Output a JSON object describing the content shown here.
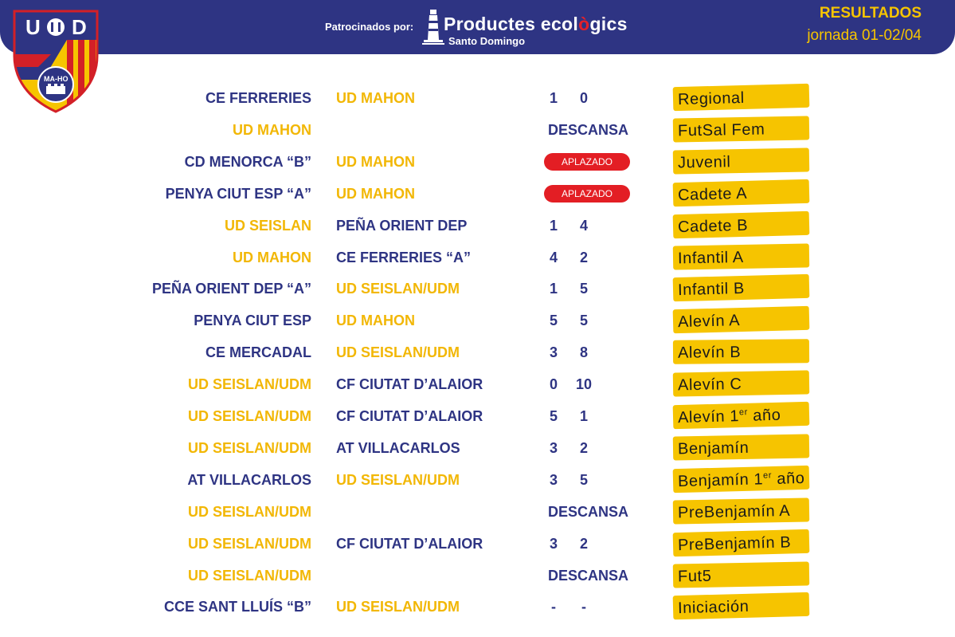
{
  "header": {
    "sponsor_label": "Patrocinados por:",
    "sponsor_name_a": "Productes ecol",
    "sponsor_name_b": "ò",
    "sponsor_name_c": "gics",
    "sponsor_sub": "Santo Domingo",
    "title": "RESULTADOS",
    "subtitle": "jornada 01-02/04"
  },
  "crest": {
    "letters_left": "U",
    "letters_right": "D",
    "banner": "MA-HO"
  },
  "colors": {
    "navy": "#2e3483",
    "gold": "#f2b705",
    "category": "#f6c400",
    "postponed": "#e31e24"
  },
  "rows": [
    {
      "home": "CE FERRERIES",
      "away": "UD MAHON",
      "s1": "1",
      "s2": "0",
      "status": "",
      "cat": "Regional",
      "sup": "",
      "cat2": ""
    },
    {
      "home": "UD MAHON",
      "away": "",
      "s1": "",
      "s2": "",
      "status": "DESCANSA",
      "cat": "FutSal Fem",
      "sup": "",
      "cat2": ""
    },
    {
      "home": "CD MENORCA “B”",
      "away": "UD MAHON",
      "s1": "",
      "s2": "",
      "status": "APLAZADO",
      "cat": "Juvenil",
      "sup": "",
      "cat2": ""
    },
    {
      "home": "PENYA CIUT ESP “A”",
      "away": "UD MAHON",
      "s1": "",
      "s2": "",
      "status": "APLAZADO",
      "cat": "Cadete A",
      "sup": "",
      "cat2": ""
    },
    {
      "home": "UD SEISLAN",
      "away": "PEÑA ORIENT DEP",
      "s1": "1",
      "s2": "4",
      "status": "",
      "cat": "Cadete B",
      "sup": "",
      "cat2": ""
    },
    {
      "home": "UD MAHON",
      "away": "CE FERRERIES “A”",
      "s1": "4",
      "s2": "2",
      "status": "",
      "cat": "Infantil A",
      "sup": "",
      "cat2": ""
    },
    {
      "home": "PEÑA ORIENT DEP “A”",
      "away": "UD SEISLAN/UDM",
      "s1": "1",
      "s2": "5",
      "status": "",
      "cat": "Infantil B",
      "sup": "",
      "cat2": ""
    },
    {
      "home": "PENYA CIUT ESP",
      "away": "UD MAHON",
      "s1": "5",
      "s2": "5",
      "status": "",
      "cat": "Alevín A",
      "sup": "",
      "cat2": ""
    },
    {
      "home": "CE MERCADAL",
      "away": "UD SEISLAN/UDM",
      "s1": "3",
      "s2": "8",
      "status": "",
      "cat": "Alevín B",
      "sup": "",
      "cat2": ""
    },
    {
      "home": "UD SEISLAN/UDM",
      "away": "CF CIUTAT D’ALAIOR",
      "s1": "0",
      "s2": "10",
      "status": "",
      "cat": "Alevín C",
      "sup": "",
      "cat2": ""
    },
    {
      "home": "UD SEISLAN/UDM",
      "away": "CF CIUTAT D’ALAIOR",
      "s1": "5",
      "s2": "1",
      "status": "",
      "cat": "Alevín 1",
      "sup": "er",
      "cat2": " año"
    },
    {
      "home": "UD SEISLAN/UDM",
      "away": "AT VILLACARLOS",
      "s1": "3",
      "s2": "2",
      "status": "",
      "cat": "Benjamín",
      "sup": "",
      "cat2": ""
    },
    {
      "home": "AT VILLACARLOS",
      "away": "UD SEISLAN/UDM",
      "s1": "3",
      "s2": "5",
      "status": "",
      "cat": "Benjamín 1",
      "sup": "er",
      "cat2": " año"
    },
    {
      "home": "UD SEISLAN/UDM",
      "away": "",
      "s1": "",
      "s2": "",
      "status": "DESCANSA",
      "cat": "PreBenjamín A",
      "sup": "",
      "cat2": ""
    },
    {
      "home": "UD SEISLAN/UDM",
      "away": "CF CIUTAT D’ALAIOR",
      "s1": "3",
      "s2": "2",
      "status": "",
      "cat": "PreBenjamín B",
      "sup": "",
      "cat2": ""
    },
    {
      "home": "UD SEISLAN/UDM",
      "away": "",
      "s1": "",
      "s2": "",
      "status": "DESCANSA",
      "cat": "Fut5",
      "sup": "",
      "cat2": ""
    },
    {
      "home": "CCE SANT LLUÍS “B”",
      "away": "UD SEISLAN/UDM",
      "s1": "-",
      "s2": "-",
      "status": "",
      "cat": "Iniciación",
      "sup": "",
      "cat2": ""
    }
  ]
}
